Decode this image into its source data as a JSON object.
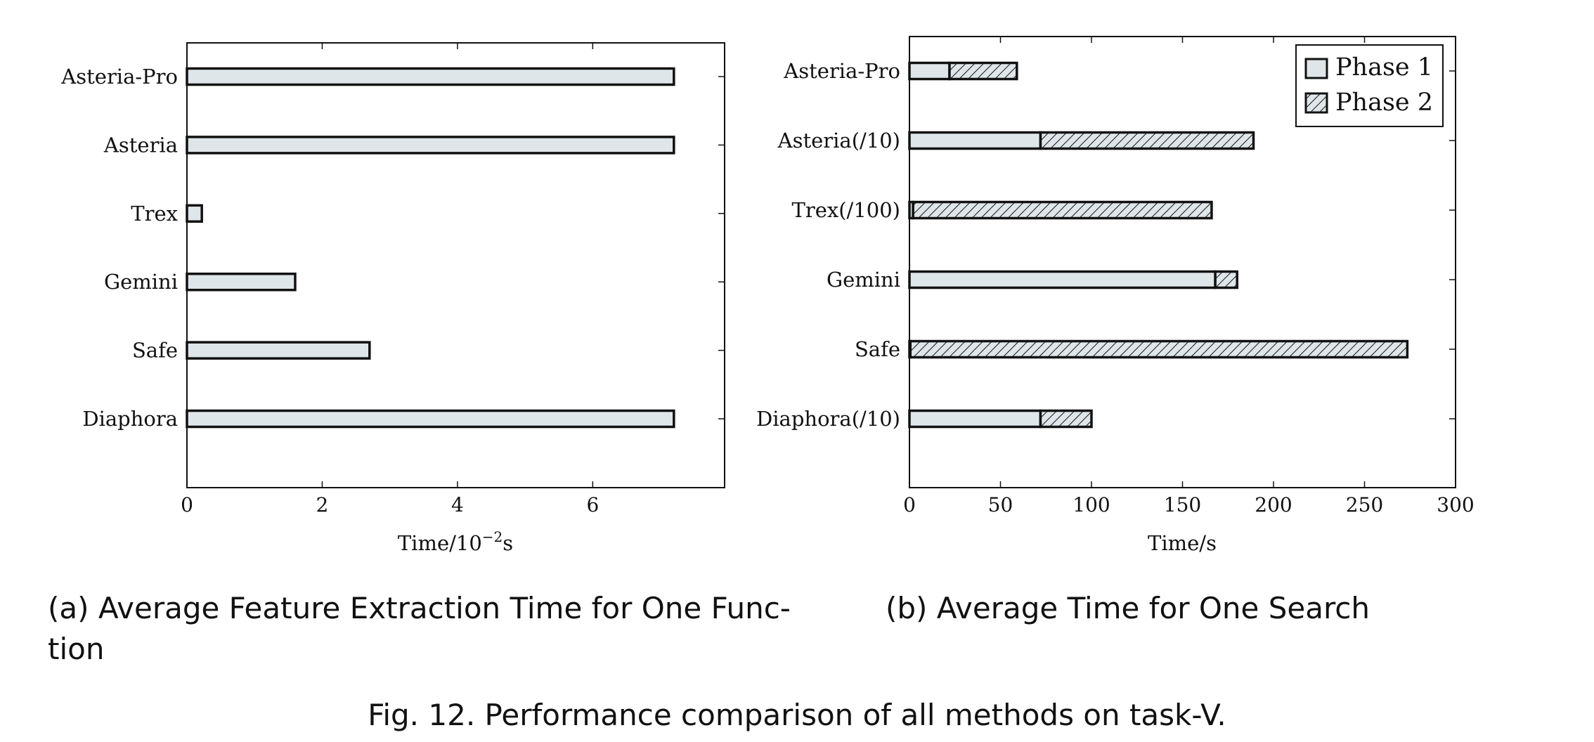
{
  "figure": {
    "caption": "Fig. 12.  Performance comparison of all methods on task-V."
  },
  "chart_data": [
    {
      "type": "bar",
      "orientation": "horizontal",
      "caption_line1": "(a) Average Feature Extraction Time for One Func-",
      "caption_line2": "tion",
      "categories": [
        "Asteria-Pro",
        "Asteria",
        "Trex",
        "Gemini",
        "Safe",
        "Diaphora"
      ],
      "values": [
        7.2,
        7.2,
        0.22,
        1.6,
        2.7,
        7.2
      ],
      "xlabel_main": "Time/10",
      "xlabel_sup": "−2",
      "xlabel_end": "s",
      "xlim": [
        0,
        7.95
      ],
      "xticks": [
        0,
        2,
        4,
        6
      ],
      "fill_color": "#dfe6e9",
      "grid": false
    },
    {
      "type": "bar",
      "orientation": "horizontal",
      "stacked": true,
      "caption_line1": "(b) Average Time for One Search",
      "categories": [
        "Asteria-Pro",
        "Asteria(/10)",
        "Trex(/100)",
        "Gemini",
        "Safe",
        "Diaphora(/10)"
      ],
      "series": [
        {
          "name": "Phase 1",
          "values": [
            22,
            72,
            2,
            168,
            0.5,
            72
          ],
          "pattern": "solid"
        },
        {
          "name": "Phase 2",
          "values": [
            37,
            117,
            164,
            12,
            273,
            28
          ],
          "pattern": "hatch"
        }
      ],
      "xlabel": "Time/s",
      "xlim": [
        0,
        300
      ],
      "xticks": [
        0,
        50,
        100,
        150,
        200,
        250,
        300
      ],
      "legend_position": "top-right",
      "fill_color": "#dfe6e9",
      "grid": false
    }
  ]
}
